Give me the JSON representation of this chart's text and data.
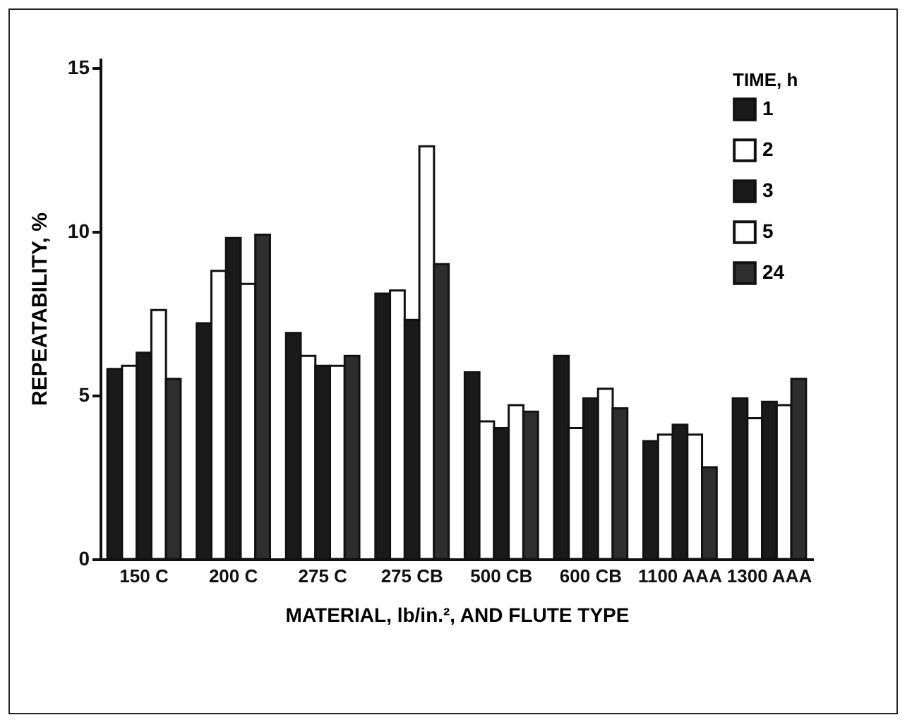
{
  "chart_data": {
    "type": "bar",
    "xlabel": "MATERIAL, lb/in.², AND FLUTE TYPE",
    "ylabel": "REPEATABILITY, %",
    "legend_title": "TIME, h",
    "categories": [
      "150\nC",
      "200\nC",
      "275\nC",
      "275\nCB",
      "500\nCB",
      "600\nCB",
      "1100\nAAA",
      "1300\nAAA"
    ],
    "series": [
      {
        "name": "1",
        "color": "#1a1a1a",
        "values": [
          5.8,
          7.2,
          6.9,
          8.1,
          5.7,
          6.2,
          3.6,
          4.9
        ]
      },
      {
        "name": "2",
        "color": "#ffffff",
        "values": [
          5.9,
          8.8,
          6.2,
          8.2,
          4.2,
          4.0,
          3.8,
          4.3
        ]
      },
      {
        "name": "3",
        "color": "#1a1a1a",
        "values": [
          6.3,
          9.8,
          5.9,
          7.3,
          4.0,
          4.9,
          4.1,
          4.8
        ]
      },
      {
        "name": "5",
        "color": "#ffffff",
        "values": [
          7.6,
          8.4,
          5.9,
          12.6,
          4.7,
          5.2,
          3.8,
          4.7
        ]
      },
      {
        "name": "24",
        "color": "#2e2e2e",
        "values": [
          5.5,
          9.9,
          6.2,
          9.0,
          4.5,
          4.6,
          2.8,
          5.5
        ]
      }
    ],
    "ylim": [
      0,
      15.3
    ],
    "yticks": [
      0,
      5,
      10,
      15
    ],
    "grid": false,
    "legend": "top right"
  }
}
